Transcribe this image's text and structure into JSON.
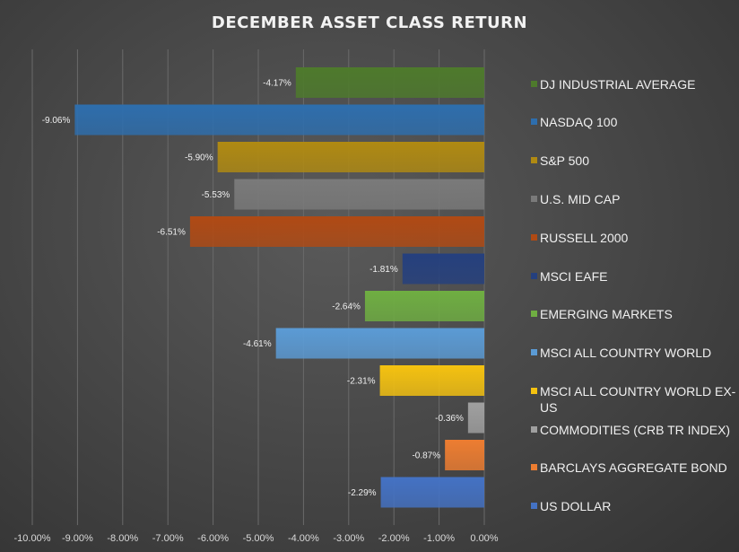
{
  "chart_data": {
    "type": "bar",
    "orientation": "horizontal",
    "title": "DECEMBER ASSET CLASS RETURN",
    "xlabel": "",
    "ylabel": "",
    "xlim": [
      -10,
      0
    ],
    "x_ticks": [
      -10,
      -9,
      -8,
      -7,
      -6,
      -5,
      -4,
      -3,
      -2,
      -1,
      0
    ],
    "x_tick_labels": [
      "-10.00%",
      "-9.00%",
      "-8.00%",
      "-7.00%",
      "-6.00%",
      "-5.00%",
      "-4.00%",
      "-3.00%",
      "-2.00%",
      "-1.00%",
      "0.00%"
    ],
    "grid": true,
    "legend_position": "right",
    "categories": [
      "DJ INDUSTRIAL AVERAGE",
      "NASDAQ 100",
      "S&P 500",
      "U.S. MID CAP",
      "RUSSELL 2000",
      "MSCI EAFE",
      "EMERGING MARKETS",
      "MSCI ALL COUNTRY WORLD",
      "MSCI ALL COUNTRY WORLD EX-US",
      "COMMODITIES (CRB TR INDEX)",
      "BARCLAYS AGGREGATE BOND",
      "US DOLLAR"
    ],
    "legend_lines": [
      [
        "DJ INDUSTRIAL AVERAGE"
      ],
      [
        "NASDAQ 100"
      ],
      [
        "S&P 500"
      ],
      [
        "U.S. MID CAP"
      ],
      [
        "RUSSELL 2000"
      ],
      [
        "MSCI EAFE"
      ],
      [
        "EMERGING MARKETS"
      ],
      [
        "MSCI ALL COUNTRY WORLD"
      ],
      [
        "MSCI ALL COUNTRY WORLD EX-",
        "US"
      ],
      [
        "COMMODITIES (CRB TR INDEX)"
      ],
      [
        "BARCLAYS AGGREGATE BOND"
      ],
      [
        "US DOLLAR"
      ]
    ],
    "values": [
      -4.17,
      -9.06,
      -5.9,
      -5.53,
      -6.51,
      -1.81,
      -2.64,
      -4.61,
      -2.31,
      -0.36,
      -0.87,
      -2.29
    ],
    "data_labels": [
      "-4.17%",
      "-9.06%",
      "-5.90%",
      "-5.53%",
      "-6.51%",
      "-1.81%",
      "-2.64%",
      "-4.61%",
      "-2.31%",
      "-0.36%",
      "-0.87%",
      "-2.29%"
    ],
    "colors": [
      "#4e7a2c",
      "#2e6ead",
      "#b08a12",
      "#7a7a7a",
      "#b04a14",
      "#25407e",
      "#6fae42",
      "#5b9bd5",
      "#f5c210",
      "#a0a0a0",
      "#ed7d31",
      "#4472c4"
    ]
  }
}
